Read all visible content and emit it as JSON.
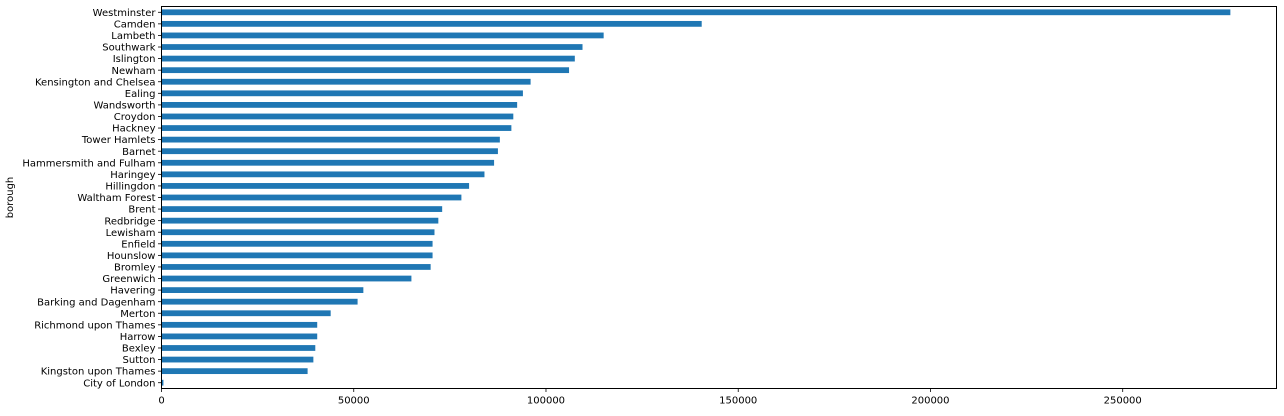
{
  "chart_data": {
    "type": "bar",
    "orientation": "horizontal",
    "xlabel": "",
    "ylabel": "borough",
    "xlim": [
      0,
      290000
    ],
    "x_ticks": [
      0,
      50000,
      100000,
      150000,
      200000,
      250000
    ],
    "x_tick_labels": [
      "0",
      "50000",
      "100000",
      "150000",
      "200000",
      "250000"
    ],
    "bar_color": "#1f77b4",
    "grid": false,
    "categories": [
      "Westminster",
      "Camden",
      "Lambeth",
      "Southwark",
      "Islington",
      "Newham",
      "Kensington and Chelsea",
      "Ealing",
      "Wandsworth",
      "Croydon",
      "Hackney",
      "Tower Hamlets",
      "Barnet",
      "Hammersmith and Fulham",
      "Haringey",
      "Hillingdon",
      "Waltham Forest",
      "Brent",
      "Redbridge",
      "Lewisham",
      "Enfield",
      "Hounslow",
      "Bromley",
      "Greenwich",
      "Havering",
      "Barking and Dagenham",
      "Merton",
      "Richmond upon Thames",
      "Harrow",
      "Bexley",
      "Sutton",
      "Kingston upon Thames",
      "City of London"
    ],
    "values": [
      278000,
      140500,
      115000,
      109500,
      107500,
      106000,
      96000,
      94000,
      92500,
      91500,
      91000,
      88000,
      87500,
      86500,
      84000,
      80000,
      78000,
      73000,
      72000,
      71000,
      70500,
      70500,
      70000,
      65000,
      52500,
      51000,
      44000,
      40500,
      40500,
      40000,
      39500,
      38000,
      500
    ]
  }
}
